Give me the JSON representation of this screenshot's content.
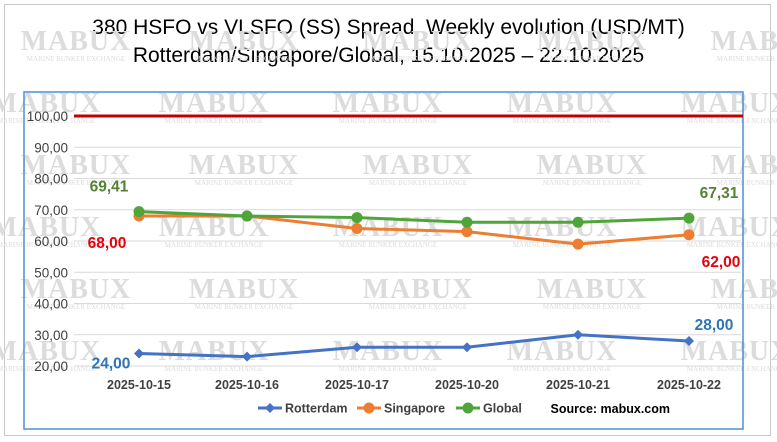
{
  "title_line1": "380 HSFO vs VLSFO (SS) Spread, Weekly evolution (USD/MT)",
  "title_line2": "Rotterdam/Singapore/Global, 15.10.2025 – 22.10.2025",
  "source": "Source: mabux.com",
  "watermark": {
    "brand": "MABUX",
    "tagline": "MARINE BUNKER EXCHANGE"
  },
  "colors": {
    "rotterdam": "#4472c4",
    "singapore": "#ed7d31",
    "global": "#4fa43a",
    "reference_line": "#c00000",
    "label_rotterdam": "#2e75b6",
    "label_singapore": "#e8000b",
    "label_global": "#548235",
    "plot_border": "#4a90d9",
    "grid": "#d9d9d9"
  },
  "chart_data": {
    "type": "line",
    "title": "380 HSFO vs VLSFO (SS) Spread, Weekly evolution (USD/MT)",
    "subtitle": "Rotterdam/Singapore/Global, 15.10.2025 – 22.10.2025",
    "categories": [
      "2025-10-15",
      "2025-10-16",
      "2025-10-17",
      "2025-10-20",
      "2025-10-21",
      "2025-10-22"
    ],
    "ylim": [
      20,
      100
    ],
    "yticks": [
      "20,00",
      "30,00",
      "40,00",
      "50,00",
      "60,00",
      "70,00",
      "80,00",
      "90,00",
      "100,00"
    ],
    "reference_line": 100,
    "legend_position": "bottom",
    "series": [
      {
        "name": "Rotterdam",
        "values": [
          24,
          23,
          26,
          26,
          30,
          28
        ],
        "start_label": "24,00",
        "end_label": "28,00"
      },
      {
        "name": "Singapore",
        "values": [
          68,
          68,
          64,
          63,
          59,
          62
        ],
        "start_label": "68,00",
        "end_label": "62,00"
      },
      {
        "name": "Global",
        "values": [
          69.41,
          68,
          67.5,
          66,
          66,
          67.31
        ],
        "start_label": "69,41",
        "end_label": "67,31"
      }
    ]
  }
}
